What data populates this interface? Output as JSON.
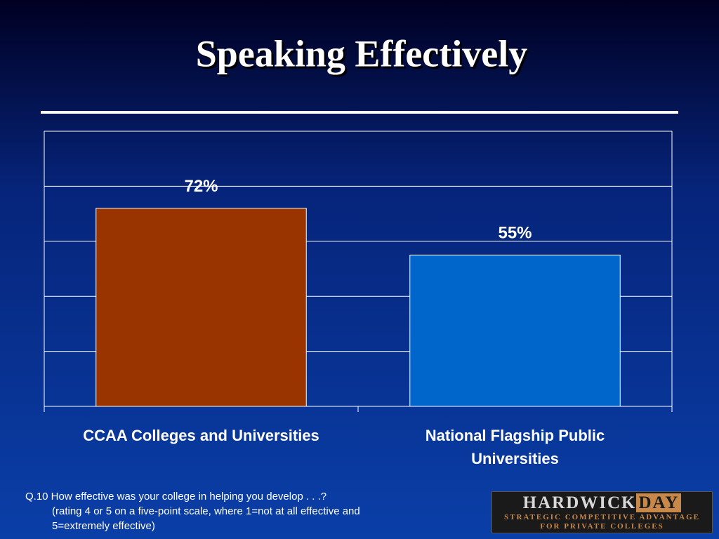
{
  "chart_data": {
    "type": "bar",
    "title": "Speaking Effectively",
    "categories": [
      "CCAA Colleges and Universities",
      "National Flagship Public Universities"
    ],
    "values": [
      72,
      55
    ],
    "value_labels": [
      "72%",
      "55%"
    ],
    "colors": [
      "#993300",
      "#0066cc"
    ],
    "ylim": [
      0,
      100
    ],
    "yticks": [
      0,
      20,
      40,
      60,
      80,
      100
    ],
    "grid": true
  },
  "footnote": {
    "question": "Q.10 How effective was your college in helping you develop . . .?",
    "note": "(rating 4 or 5 on a five-point scale, where 1=not at all effective and 5=extremely effective)"
  },
  "logo": {
    "name": "HARDWICK",
    "name_highlight": "DAY",
    "tagline_1": "STRATEGIC COMPETITIVE ADVANTAGE",
    "tagline_2": "FOR PRIVATE COLLEGES"
  }
}
